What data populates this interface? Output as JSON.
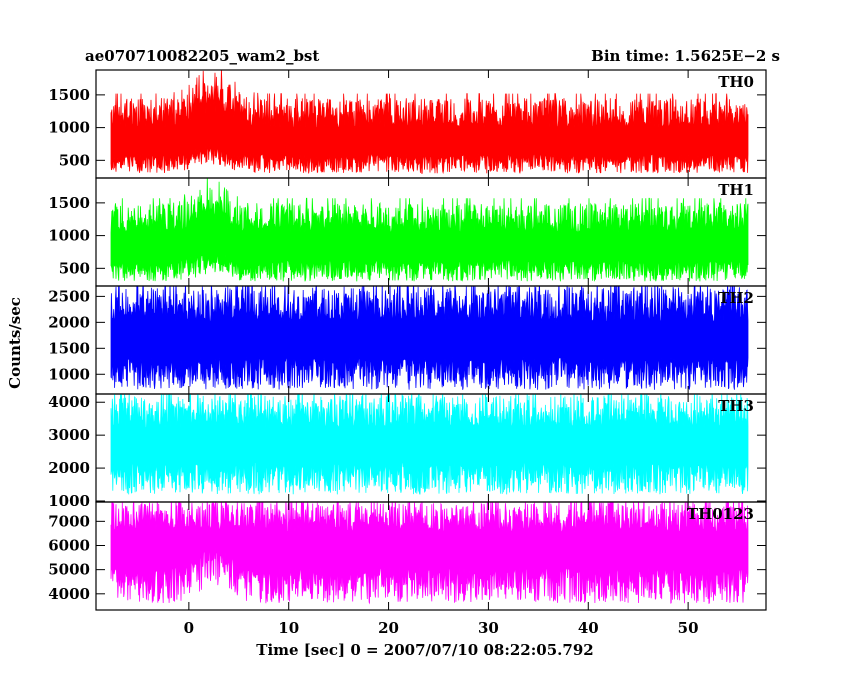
{
  "header": {
    "left_title": "ae070710082205_wam2_bst",
    "right_title": "Bin time: 1.5625E−2 s"
  },
  "chart_data": {
    "type": "line",
    "xlabel": "Time [sec] 0 = 2007/07/10 08:22:05.792",
    "ylabel": "Counts/sec",
    "xlim": [
      -9.3,
      57.8
    ],
    "x_ticks": [
      0,
      10,
      20,
      30,
      40,
      50
    ],
    "x_tick_labels": [
      "0",
      "10",
      "20",
      "30",
      "40",
      "50"
    ],
    "data_x_range": [
      -7.8,
      56.0
    ],
    "bin_time": 0.015625,
    "panels": [
      {
        "name": "TH0",
        "color": "#ff0000",
        "ylim": [
          230,
          1880
        ],
        "y_ticks": [
          500,
          1000,
          1500
        ],
        "y_tick_labels": [
          "500",
          "1000",
          "1500"
        ],
        "approx_mean": 750,
        "approx_noise_high": 1450,
        "approx_noise_low": 300,
        "burst": {
          "t_start": 0,
          "t_end": 5,
          "peak_time": 2.5,
          "peak": 1880,
          "low_floor": 500
        }
      },
      {
        "name": "TH1",
        "color": "#00ff00",
        "ylim": [
          230,
          1880
        ],
        "y_ticks": [
          500,
          1000,
          1500
        ],
        "y_tick_labels": [
          "500",
          "1000",
          "1500"
        ],
        "approx_mean": 800,
        "approx_noise_high": 1500,
        "approx_noise_low": 300,
        "burst": {
          "t_start": 0,
          "t_end": 4,
          "peak_time": 2,
          "peak": 1850,
          "low_floor": 500
        }
      },
      {
        "name": "TH2",
        "color": "#0000ff",
        "ylim": [
          620,
          2700
        ],
        "y_ticks": [
          1000,
          1500,
          2000,
          2500
        ],
        "y_tick_labels": [
          "1000",
          "1500",
          "2000",
          "2500"
        ],
        "approx_mean": 1650,
        "approx_noise_high": 2700,
        "approx_noise_low": 700,
        "burst": null
      },
      {
        "name": "TH3",
        "color": "#00ffff",
        "ylim": [
          970,
          4250
        ],
        "y_ticks": [
          1000,
          2000,
          3000,
          4000
        ],
        "y_tick_labels": [
          "1000",
          "2000",
          "3000",
          "4000"
        ],
        "approx_mean": 2700,
        "approx_noise_high": 4200,
        "approx_noise_low": 1200,
        "burst": null
      },
      {
        "name": "TH0123",
        "color": "#ff00ff",
        "ylim": [
          3330,
          7800
        ],
        "y_ticks": [
          4000,
          5000,
          6000,
          7000
        ],
        "y_tick_labels": [
          "4000",
          "5000",
          "6000",
          "7000"
        ],
        "approx_mean": 5900,
        "approx_noise_high": 7800,
        "approx_noise_low": 3600,
        "burst": {
          "t_start": 0,
          "t_end": 5,
          "peak_time": 2.5,
          "peak": 7800,
          "low_floor": 4700
        }
      }
    ]
  }
}
